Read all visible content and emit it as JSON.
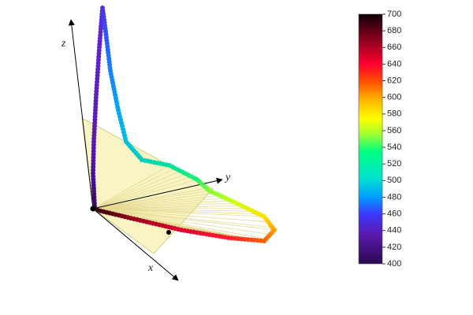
{
  "axes": {
    "x": "x",
    "y": "y",
    "z": "z"
  },
  "colorbar": {
    "lim": [
      400,
      700
    ],
    "ticks": [
      400,
      420,
      440,
      460,
      480,
      500,
      520,
      540,
      560,
      580,
      600,
      620,
      640,
      660,
      680,
      700
    ]
  }
}
